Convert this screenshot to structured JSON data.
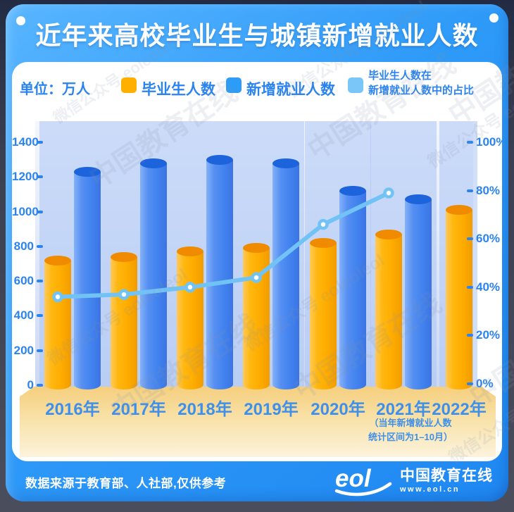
{
  "title": "近年来高校毕业生与城镇新增就业人数",
  "legend": {
    "unit_label": "单位：万人",
    "items": [
      {
        "label": "毕业生人数",
        "color": "#FFAF00"
      },
      {
        "label": "新增就业人数",
        "color": "#2D9CF6"
      },
      {
        "label_line1": "毕业生人数在",
        "label_line2": "新增就业人数中的占比",
        "color": "#7AC6F8"
      }
    ]
  },
  "chart_data": {
    "type": "bar",
    "title": "近年来高校毕业生与城镇新增就业人数",
    "categories": [
      "2016年",
      "2017年",
      "2018年",
      "2019年",
      "2020年",
      "2021年",
      "2022年"
    ],
    "series": [
      {
        "name": "毕业生人数",
        "type": "bar",
        "color": "#FFAF00",
        "values": [
          720,
          740,
          770,
          790,
          820,
          870,
          1010
        ]
      },
      {
        "name": "新增就业人数",
        "type": "bar",
        "color": "#4285F0",
        "values": [
          1230,
          1280,
          1300,
          1280,
          1120,
          1070,
          null
        ]
      },
      {
        "name": "毕业生人数在新增就业人数中的占比",
        "type": "line",
        "color": "#72C3F5",
        "unit": "%",
        "values": [
          36,
          37,
          40,
          44,
          66,
          79,
          null
        ]
      }
    ],
    "left_axis": {
      "unit": "万人",
      "range": [
        0,
        1400
      ],
      "ticks": [
        "1400",
        "1200",
        "1000",
        "800",
        "600",
        "400",
        "200",
        "0"
      ]
    },
    "right_axis": {
      "unit": "%",
      "range": [
        0,
        100
      ],
      "ticks": [
        "100%",
        "80%",
        "60%",
        "40%",
        "20%",
        "0%"
      ]
    },
    "note_line1": "（当年新增就业人数",
    "note_line2": "统计区间为1–10月）",
    "legend_position": "top",
    "grid": false
  },
  "footer": {
    "source": "数据来源于教育部、人社部,仅供参考",
    "logo_text": "eol",
    "brand_name": "中国教育在线",
    "brand_site": "www.eol.cn"
  },
  "watermarks": [
    "中国教育在线",
    "微信公众号 eoleoleol"
  ]
}
